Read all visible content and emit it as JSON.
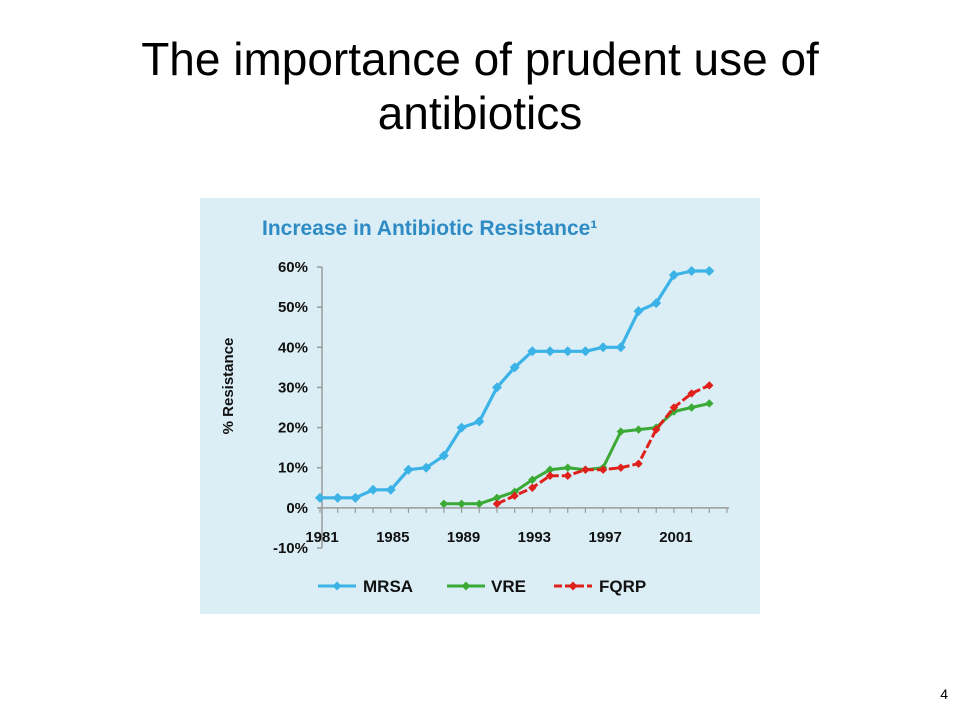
{
  "slide": {
    "title": "The importance of prudent use of antibiotics",
    "page_number": "4"
  },
  "colors": {
    "panel_background": "#dbeef6",
    "title_blue": "#2e8bc4",
    "mrsa": "#3bb3e6",
    "vre": "#3aaa35",
    "fqrp": "#e0201b"
  },
  "chart_data": {
    "type": "line",
    "title": "Increase in Antibiotic Resistance¹",
    "ylabel": "% Resistance",
    "xlabel": "",
    "ylim": [
      -10,
      60
    ],
    "yticks": [
      -10,
      0,
      10,
      20,
      30,
      40,
      50,
      60
    ],
    "ytick_labels": [
      "-10%",
      "0%",
      "10%",
      "20%",
      "30%",
      "40%",
      "50%",
      "60%"
    ],
    "xlim": [
      1981,
      2004
    ],
    "xticks": [
      1981,
      1985,
      1989,
      1993,
      1997,
      2001
    ],
    "xtick_labels": [
      "1981",
      "1985",
      "1989",
      "1993",
      "1997",
      "2001"
    ],
    "grid": false,
    "legend_position": "bottom",
    "series": [
      {
        "name": "MRSA",
        "x": [
          1981,
          1982,
          1983,
          1984,
          1985,
          1986,
          1987,
          1988,
          1989,
          1990,
          1991,
          1992,
          1993,
          1994,
          1995,
          1996,
          1997,
          1998,
          1999,
          2000,
          2001,
          2002,
          2003
        ],
        "y": [
          2.5,
          2.5,
          2.5,
          4.5,
          4.5,
          9.5,
          10,
          13,
          20,
          21.5,
          30,
          35,
          39,
          39,
          39,
          39,
          40,
          40,
          49,
          51,
          58,
          59,
          59
        ]
      },
      {
        "name": "VRE",
        "x": [
          1988,
          1989,
          1990,
          1991,
          1992,
          1993,
          1994,
          1995,
          1996,
          1997,
          1998,
          1999,
          2000,
          2001,
          2002,
          2003
        ],
        "y": [
          1,
          1,
          1,
          2.5,
          4,
          7,
          9.5,
          10,
          9.5,
          10,
          19,
          19.5,
          20,
          24,
          25,
          26
        ]
      },
      {
        "name": "FQRP",
        "x": [
          1991,
          1992,
          1993,
          1994,
          1995,
          1996,
          1997,
          1998,
          1999,
          2000,
          2001,
          2002,
          2003
        ],
        "y": [
          1,
          3,
          5,
          8,
          8,
          9.5,
          9.5,
          10,
          11,
          19.5,
          25,
          28.5,
          30.5
        ]
      }
    ]
  }
}
